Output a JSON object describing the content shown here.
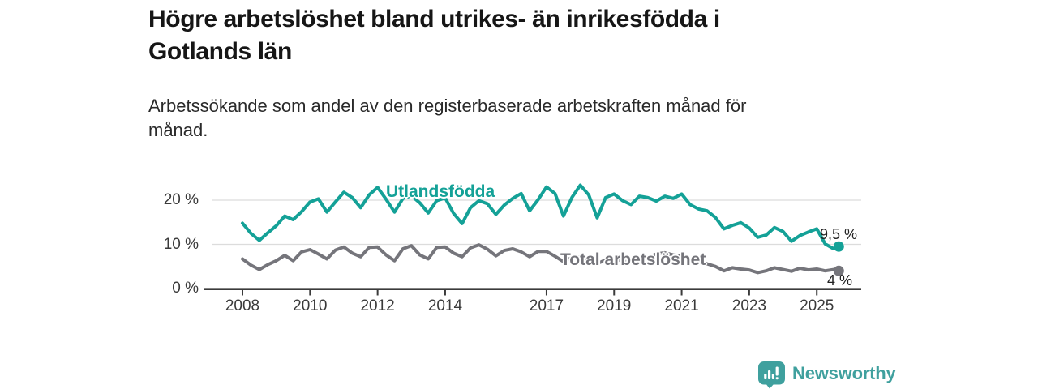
{
  "header": {
    "title": "Högre arbetslöshet bland utrikes- än inrikesfödda i\nGotlands län",
    "subtitle": "Arbetssökande som andel av den registerbaserade arbetskraften månad för\nmånad."
  },
  "chart_data": {
    "type": "line",
    "title": "Högre arbetslöshet bland utrikes- än inrikesfödda i Gotlands län",
    "subtitle": "Arbetssökande som andel av den registerbaserade arbetskraften månad för månad.",
    "grid": "horizontal",
    "legend_position": "inline-labels",
    "x_axis": {
      "tick_years": [
        2008,
        2010,
        2012,
        2014,
        2017,
        2019,
        2021,
        2023,
        2025
      ],
      "range": [
        2007.6,
        2026.1
      ]
    },
    "y_axis": {
      "ticks": [
        {
          "label": "0 %",
          "value": 0
        },
        {
          "label": "10 %",
          "value": 10
        },
        {
          "label": "20 %",
          "value": 20
        }
      ],
      "range": [
        0,
        24
      ],
      "unit": "%"
    },
    "x": [
      2008,
      2008.25,
      2008.5,
      2008.75,
      2009,
      2009.25,
      2009.5,
      2009.75,
      2010,
      2010.25,
      2010.5,
      2010.75,
      2011,
      2011.25,
      2011.5,
      2011.75,
      2012,
      2012.25,
      2012.5,
      2012.75,
      2013,
      2013.25,
      2013.5,
      2013.75,
      2014,
      2014.25,
      2014.5,
      2014.75,
      2015,
      2015.25,
      2015.5,
      2015.75,
      2016,
      2016.25,
      2016.5,
      2016.75,
      2017,
      2017.25,
      2017.5,
      2017.75,
      2018,
      2018.25,
      2018.5,
      2018.75,
      2019,
      2019.25,
      2019.5,
      2019.75,
      2020,
      2020.25,
      2020.5,
      2020.75,
      2021,
      2021.25,
      2021.5,
      2021.75,
      2022,
      2022.25,
      2022.5,
      2022.75,
      2023,
      2023.25,
      2023.5,
      2023.75,
      2024,
      2024.25,
      2024.5,
      2024.75,
      2025,
      2025.25,
      2025.5,
      2025.65
    ],
    "series": [
      {
        "name": "Utlandsfödda",
        "color": "#14a197",
        "end_label": "9,5 %",
        "end_value": 9.5,
        "values": [
          14.8,
          12.5,
          10.9,
          12.6,
          14.2,
          16.4,
          15.6,
          17.4,
          19.6,
          20.3,
          17.3,
          19.6,
          21.8,
          20.6,
          18.3,
          21.2,
          22.9,
          20.2,
          17.3,
          20.4,
          21.0,
          19.4,
          17.1,
          19.9,
          20.5,
          17.0,
          14.7,
          18.3,
          19.9,
          19.2,
          16.8,
          18.9,
          20.4,
          21.5,
          17.6,
          20.1,
          23.0,
          21.5,
          16.4,
          20.6,
          23.4,
          21.2,
          16.0,
          20.6,
          21.4,
          19.9,
          19.0,
          20.9,
          20.6,
          19.8,
          20.9,
          20.4,
          21.4,
          19.0,
          18.0,
          17.6,
          16.1,
          13.5,
          14.3,
          14.9,
          13.7,
          11.6,
          12.1,
          13.8,
          12.9,
          10.7,
          12.0,
          12.8,
          13.5,
          10.1,
          9.0,
          9.5
        ]
      },
      {
        "name": "Total arbetslöshet",
        "color": "#75757b",
        "end_label": "4 %",
        "end_value": 4,
        "values": [
          6.7,
          5.3,
          4.3,
          5.4,
          6.3,
          7.5,
          6.3,
          8.3,
          8.8,
          7.8,
          6.7,
          8.7,
          9.4,
          8.0,
          7.2,
          9.3,
          9.4,
          7.6,
          6.3,
          9.0,
          9.7,
          7.6,
          6.7,
          9.3,
          9.4,
          8.0,
          7.2,
          9.2,
          9.9,
          8.9,
          7.4,
          8.6,
          9.0,
          8.3,
          7.2,
          8.4,
          8.4,
          7.3,
          6.1,
          7.0,
          7.1,
          6.4,
          5.6,
          6.5,
          6.8,
          6.2,
          6.0,
          6.7,
          7.0,
          7.8,
          8.1,
          7.6,
          7.3,
          6.6,
          6.0,
          5.6,
          5.0,
          4.0,
          4.7,
          4.4,
          4.2,
          3.6,
          4.0,
          4.7,
          4.3,
          3.9,
          4.6,
          4.2,
          4.4,
          4.0,
          4.3,
          4.0
        ]
      }
    ],
    "colors": {
      "grid": "#dcdcdc",
      "axis": "#3b3b3b",
      "value_label": "#222222"
    }
  },
  "footer": {
    "brand": "Newsworthy",
    "brand_color": "#3fa09e"
  }
}
